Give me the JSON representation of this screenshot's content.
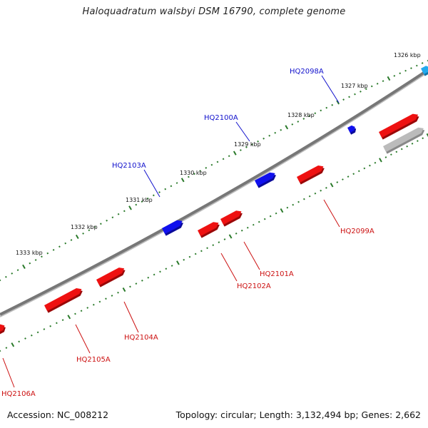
{
  "title": "Haloquadratum walsbyi DSM 16790, complete genome",
  "footer": {
    "accession": "Accession: NC_008212",
    "topology": "Topology: circular; Length: 3,132,494 bp; Genes: 2,662"
  },
  "colors": {
    "forward_gene": "#1010ee",
    "reverse_gene": "#ee1111",
    "highlight_gene": "#22aaee",
    "pseudo_gene": "#bbbbbb",
    "backbone": "#777777",
    "tick_marks": "#2a7a2a",
    "forward_label": "#1010cc",
    "reverse_label": "#cc1111"
  },
  "scale_ticks": [
    {
      "label": "1326 kbp"
    },
    {
      "label": "1327 kbp"
    },
    {
      "label": "1328 kbp"
    },
    {
      "label": "1329 kbp"
    },
    {
      "label": "1330 kbp"
    },
    {
      "label": "1331 kbp"
    },
    {
      "label": "1332 kbp"
    },
    {
      "label": "1333 kbp"
    }
  ],
  "forward_genes": [
    {
      "name": "HQ2098A"
    },
    {
      "name": "HQ2100A"
    },
    {
      "name": "HQ2103A"
    }
  ],
  "reverse_genes": [
    {
      "name": "HQ2099A"
    },
    {
      "name": "HQ2101A"
    },
    {
      "name": "HQ2102A"
    },
    {
      "name": "HQ2104A"
    },
    {
      "name": "HQ2105A"
    },
    {
      "name": "HQ2106A"
    }
  ]
}
